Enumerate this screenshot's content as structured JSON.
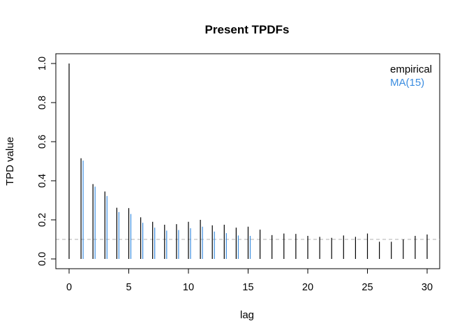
{
  "chart_data": {
    "type": "bar",
    "title": "Present TPDFs",
    "xlabel": "lag",
    "ylabel": "TPD value",
    "xlim": [
      0,
      30
    ],
    "ylim": [
      0,
      1
    ],
    "x_ticks": [
      0,
      5,
      10,
      15,
      20,
      25,
      30
    ],
    "y_ticks": [
      0.0,
      0.2,
      0.4,
      0.6,
      0.8,
      1.0
    ],
    "x_tick_labels": [
      "0",
      "5",
      "10",
      "15",
      "20",
      "25",
      "30"
    ],
    "y_tick_labels": [
      "0.0",
      "0.2",
      "0.4",
      "0.6",
      "0.8",
      "1.0"
    ],
    "reference_line": {
      "y": 0.1,
      "style": "dashed",
      "color": "#b0b0b0"
    },
    "legend": {
      "placement": "top-right"
    },
    "grid": false,
    "series": [
      {
        "name": "empirical",
        "color": "#000000",
        "x": [
          0,
          1,
          2,
          3,
          4,
          5,
          6,
          7,
          8,
          9,
          10,
          11,
          12,
          13,
          14,
          15,
          16,
          17,
          18,
          19,
          20,
          21,
          22,
          23,
          24,
          25,
          26,
          27,
          28,
          29,
          30
        ],
        "values": [
          1.0,
          0.515,
          0.383,
          0.345,
          0.262,
          0.26,
          0.213,
          0.19,
          0.175,
          0.178,
          0.19,
          0.2,
          0.172,
          0.175,
          0.16,
          0.165,
          0.15,
          0.122,
          0.13,
          0.128,
          0.118,
          0.113,
          0.108,
          0.12,
          0.113,
          0.13,
          0.088,
          0.088,
          0.1,
          0.118,
          0.125
        ]
      },
      {
        "name": "MA(15)",
        "color": "#3b8de0",
        "x": [
          1,
          2,
          3,
          4,
          5,
          6,
          7,
          8,
          9,
          10,
          11,
          12,
          13,
          14,
          15
        ],
        "values": [
          0.503,
          0.37,
          0.322,
          0.24,
          0.23,
          0.185,
          0.16,
          0.145,
          0.148,
          0.157,
          0.165,
          0.14,
          0.132,
          0.12,
          0.118
        ]
      }
    ]
  }
}
